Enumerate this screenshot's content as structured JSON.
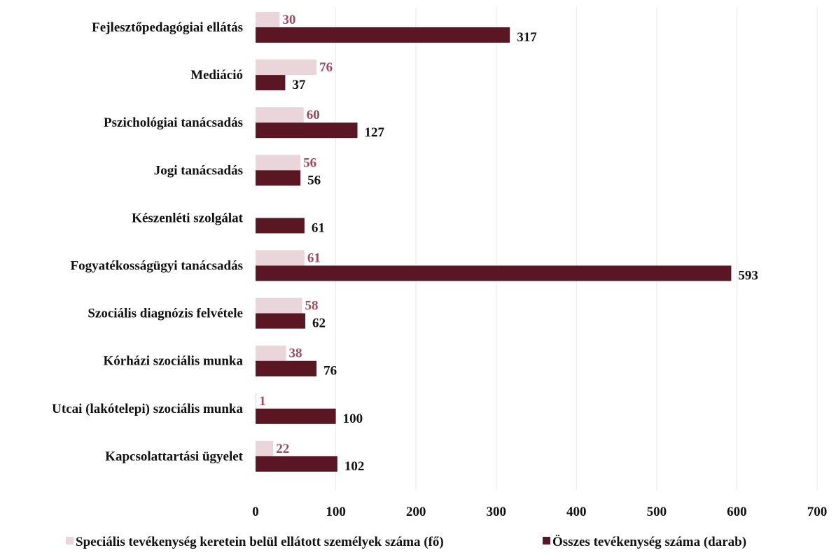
{
  "chart_data": {
    "type": "bar",
    "orientation": "horizontal",
    "title": "",
    "xlabel": "",
    "ylabel": "",
    "categories": [
      "Fejlesztőpedagógiai ellátás",
      "Mediáció",
      "Pszichológiai tanácsadás",
      "Jogi tanácsadás",
      "Készenléti szolgálat",
      "Fogyatékosságügyi tanácsadás",
      "Szociális diagnózis felvétele",
      "Kórházi szociális munka",
      "Utcai (lakótelepi) szociális munka",
      "Kapcsolattartási ügyelet"
    ],
    "series": [
      {
        "name": "Speciális tevékenység keretein belül ellátott személyek száma (fő)",
        "color": "#ead5da",
        "label_color": "#a04a5a",
        "values": [
          30,
          76,
          60,
          56,
          null,
          61,
          58,
          38,
          1,
          22
        ],
        "labels": [
          "30",
          "76",
          "60",
          "56",
          "",
          "61",
          "58",
          "38",
          "1",
          "22"
        ]
      },
      {
        "name": "Összes tevékenység száma (darab)",
        "color": "#5a1622",
        "label_color": "#111111",
        "values": [
          317,
          37,
          127,
          56,
          61,
          593,
          62,
          76,
          100,
          102
        ],
        "labels": [
          "317",
          "37",
          "127",
          "56",
          "61",
          "593",
          "62",
          "76",
          "100",
          "102"
        ]
      }
    ],
    "xlim": [
      0,
      700
    ],
    "xticks": [
      0,
      100,
      200,
      300,
      400,
      500,
      600,
      700
    ],
    "xtick_labels": [
      "0",
      "100",
      "200",
      "300",
      "400",
      "500",
      "600",
      "700"
    ],
    "grid": "vertical",
    "legend_position": "bottom"
  }
}
